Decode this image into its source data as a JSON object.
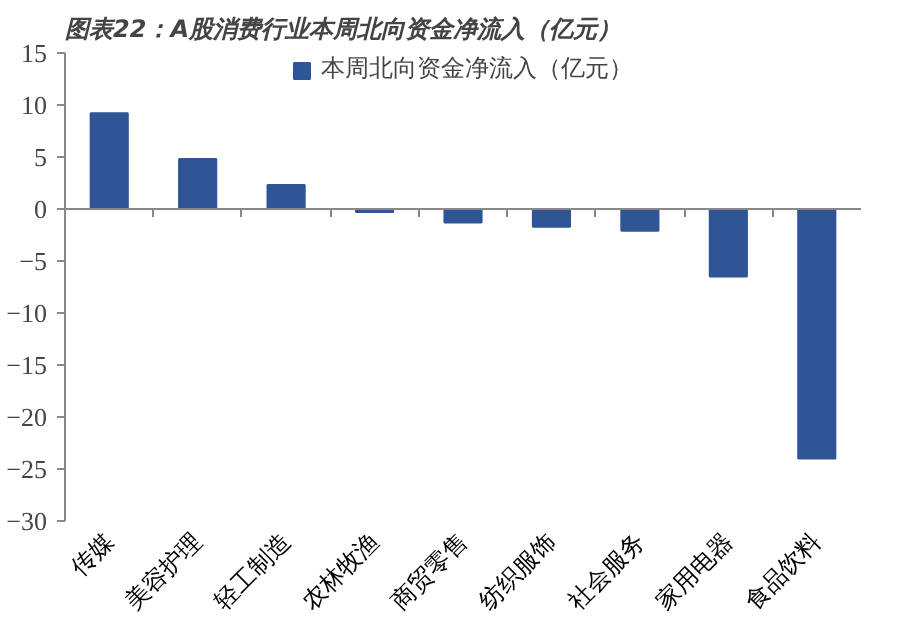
{
  "chart_data": {
    "type": "bar",
    "title": "图表22：A股消费行业本周北向资金净流入（亿元）",
    "categories": [
      "传媒",
      "美容护理",
      "轻工制造",
      "农林牧渔",
      "商贸零售",
      "纺织服饰",
      "社会服务",
      "家用电器",
      "食品饮料"
    ],
    "series": [
      {
        "name": "本周北向资金净流入（亿元）",
        "color": "#2f5597",
        "values": [
          9.2,
          4.8,
          2.3,
          -0.3,
          -1.3,
          -1.7,
          -2.1,
          -6.5,
          -24.0
        ]
      }
    ],
    "ylim": [
      -30,
      15
    ],
    "yticks": [
      -30,
      -25,
      -20,
      -15,
      -10,
      -5,
      0,
      5,
      10,
      15
    ],
    "legend": "top"
  }
}
